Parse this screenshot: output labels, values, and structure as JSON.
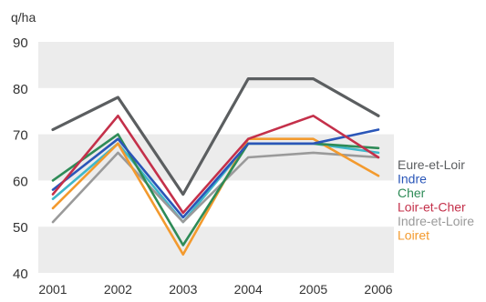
{
  "chart_data": {
    "type": "line",
    "ylabel": "q/ha",
    "xlabel": "",
    "x": [
      "2001",
      "2002",
      "2003",
      "2004",
      "2005",
      "2006"
    ],
    "ylim": [
      40,
      90
    ],
    "yticks": [
      40,
      50,
      60,
      70,
      80,
      90
    ],
    "background_bands": [
      [
        80,
        90
      ],
      [
        60,
        70
      ],
      [
        40,
        50
      ]
    ],
    "band_color": "#ececec",
    "legend_placement": "right",
    "series": [
      {
        "name": "Eure-et-Loir",
        "color": "#5b5e60",
        "values": [
          71,
          78,
          57,
          82,
          82,
          74
        ]
      },
      {
        "name": "Indre",
        "color": "#2a56b8",
        "values": [
          58,
          69,
          52,
          68,
          68,
          71
        ]
      },
      {
        "name": "Cher",
        "color": "#2e8b57",
        "values": [
          60,
          70,
          46,
          68,
          68,
          67
        ]
      },
      {
        "name": "Loir-et-Cher",
        "color": "#c4304a",
        "values": [
          57,
          74,
          53,
          69,
          74,
          65
        ]
      },
      {
        "name": "Indre-et-Loire",
        "color": "#9a9a9a",
        "values": [
          51,
          66,
          51,
          65,
          66,
          65
        ]
      },
      {
        "name": "Loiret",
        "color": "#f39a2e",
        "values": [
          54,
          68,
          44,
          69,
          69,
          61
        ]
      },
      {
        "name": "",
        "color": "#3fb7c9",
        "values": [
          56,
          68,
          51,
          68,
          68,
          66
        ]
      }
    ]
  }
}
